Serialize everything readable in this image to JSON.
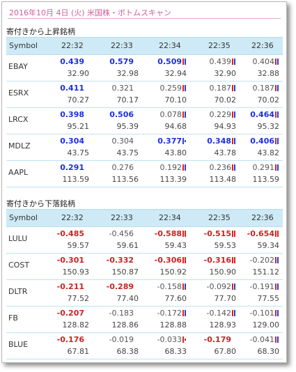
{
  "header": {
    "title": "2016年10月 4日 (火) 米国株・ボトムスキャン"
  },
  "columns": {
    "symbol": "Symbol",
    "times": [
      "22:32",
      "22:33",
      "22:34",
      "22:35",
      "22:36"
    ]
  },
  "gainers": {
    "title": "寄付きから上昇銘柄",
    "rows": [
      {
        "symbol": "EBAY",
        "cells": [
          {
            "pct": "0.439",
            "price": "32.90",
            "bold": true,
            "color": "pos"
          },
          {
            "pct": "0.579",
            "price": "32.98",
            "bold": true,
            "color": "pos"
          },
          {
            "pct": "0.509",
            "price": "32.94",
            "bold": true,
            "color": "pos",
            "mark": "ru"
          },
          {
            "pct": "0.439",
            "price": "32.90",
            "bold": false,
            "color": "gry",
            "mark": "ru"
          },
          {
            "pct": "0.404",
            "price": "32.88",
            "bold": false,
            "color": "gry",
            "mark": "ru"
          }
        ]
      },
      {
        "symbol": "ESRX",
        "cells": [
          {
            "pct": "0.411",
            "price": "70.27",
            "bold": true,
            "color": "pos"
          },
          {
            "pct": "0.321",
            "price": "70.17",
            "bold": false,
            "color": "gry"
          },
          {
            "pct": "0.259",
            "price": "70.10",
            "bold": false,
            "color": "gry",
            "mark": "ru"
          },
          {
            "pct": "0.187",
            "price": "70.02",
            "bold": false,
            "color": "gry",
            "mark": "ru"
          },
          {
            "pct": "0.187",
            "price": "70.02",
            "bold": false,
            "color": "gry",
            "mark": "ru"
          }
        ]
      },
      {
        "symbol": "LRCX",
        "cells": [
          {
            "pct": "0.398",
            "price": "95.21",
            "bold": true,
            "color": "pos"
          },
          {
            "pct": "0.506",
            "price": "95.39",
            "bold": true,
            "color": "pos"
          },
          {
            "pct": "0.078",
            "price": "94.68",
            "bold": false,
            "color": "gry",
            "mark": "ru"
          },
          {
            "pct": "0.229",
            "price": "94.93",
            "bold": false,
            "color": "gry",
            "mark": "ru"
          },
          {
            "pct": "0.464",
            "price": "95.32",
            "bold": true,
            "color": "pos",
            "mark": "ru"
          }
        ]
      },
      {
        "symbol": "MDLZ",
        "cells": [
          {
            "pct": "0.304",
            "price": "43.75",
            "bold": true,
            "color": "pos"
          },
          {
            "pct": "0.304",
            "price": "43.75",
            "bold": false,
            "color": "gry"
          },
          {
            "pct": "0.377",
            "price": "43.80",
            "bold": true,
            "color": "pos",
            "mark": "u-"
          },
          {
            "pct": "0.348",
            "price": "43.78",
            "bold": true,
            "color": "pos",
            "mark": "ru"
          },
          {
            "pct": "0.406",
            "price": "43.82",
            "bold": true,
            "color": "pos",
            "mark": "ru"
          }
        ]
      },
      {
        "symbol": "AAPL",
        "cells": [
          {
            "pct": "0.291",
            "price": "113.59",
            "bold": true,
            "color": "pos"
          },
          {
            "pct": "0.276",
            "price": "113.56",
            "bold": false,
            "color": "gry"
          },
          {
            "pct": "0.192",
            "price": "113.39",
            "bold": false,
            "color": "gry",
            "mark": "ru"
          },
          {
            "pct": "0.236",
            "price": "113.48",
            "bold": false,
            "color": "gry",
            "mark": "ru"
          },
          {
            "pct": "0.291",
            "price": "113.59",
            "bold": false,
            "color": "gry",
            "mark": "ru"
          }
        ]
      }
    ]
  },
  "losers": {
    "title": "寄付きから下落銘柄",
    "rows": [
      {
        "symbol": "LULU",
        "cells": [
          {
            "pct": "-0.485",
            "price": "59.57",
            "bold": true,
            "color": "neg"
          },
          {
            "pct": "-0.456",
            "price": "59.61",
            "bold": false,
            "color": "gry"
          },
          {
            "pct": "-0.588",
            "price": "59.43",
            "bold": true,
            "color": "neg",
            "mark": "rr"
          },
          {
            "pct": "-0.515",
            "price": "59.53",
            "bold": true,
            "color": "neg",
            "mark": "rr"
          },
          {
            "pct": "-0.654",
            "price": "59.34",
            "bold": true,
            "color": "neg",
            "mark": "rr"
          }
        ]
      },
      {
        "symbol": "COST",
        "cells": [
          {
            "pct": "-0.301",
            "price": "150.93",
            "bold": true,
            "color": "neg"
          },
          {
            "pct": "-0.332",
            "price": "150.87",
            "bold": true,
            "color": "neg"
          },
          {
            "pct": "-0.306",
            "price": "150.92",
            "bold": true,
            "color": "neg",
            "mark": "rr"
          },
          {
            "pct": "-0.316",
            "price": "150.90",
            "bold": true,
            "color": "neg",
            "mark": "rr"
          },
          {
            "pct": "-0.202",
            "price": "151.12",
            "bold": false,
            "color": "gry",
            "mark": "ru"
          }
        ]
      },
      {
        "symbol": "DLTR",
        "cells": [
          {
            "pct": "-0.211",
            "price": "77.52",
            "bold": true,
            "color": "neg"
          },
          {
            "pct": "-0.289",
            "price": "77.40",
            "bold": true,
            "color": "neg"
          },
          {
            "pct": "-0.158",
            "price": "77.60",
            "bold": false,
            "color": "gry",
            "mark": "ru"
          },
          {
            "pct": "-0.092",
            "price": "77.70",
            "bold": false,
            "color": "gry",
            "mark": "ru"
          },
          {
            "pct": "-0.191",
            "price": "77.55",
            "bold": false,
            "color": "gry",
            "mark": "ru"
          }
        ]
      },
      {
        "symbol": "FB",
        "cells": [
          {
            "pct": "-0.207",
            "price": "128.82",
            "bold": true,
            "color": "neg"
          },
          {
            "pct": "-0.183",
            "price": "128.86",
            "bold": false,
            "color": "gry"
          },
          {
            "pct": "-0.172",
            "price": "128.88",
            "bold": false,
            "color": "gry",
            "mark": "ru"
          },
          {
            "pct": "-0.142",
            "price": "128.93",
            "bold": false,
            "color": "gry",
            "mark": "ru"
          },
          {
            "pct": "-0.101",
            "price": "129.00",
            "bold": false,
            "color": "gry",
            "mark": "ru"
          }
        ]
      },
      {
        "symbol": "BLUE",
        "cells": [
          {
            "pct": "-0.176",
            "price": "67.81",
            "bold": true,
            "color": "neg"
          },
          {
            "pct": "-0.019",
            "price": "68.38",
            "bold": false,
            "color": "gry"
          },
          {
            "pct": "-0.033",
            "price": "68.33",
            "bold": false,
            "color": "gry",
            "mark": "r-"
          },
          {
            "pct": "-0.179",
            "price": "67.80",
            "bold": true,
            "color": "neg"
          },
          {
            "pct": "-0.041",
            "price": "68.30",
            "bold": false,
            "color": "gry",
            "mark": "ru"
          }
        ]
      }
    ]
  }
}
